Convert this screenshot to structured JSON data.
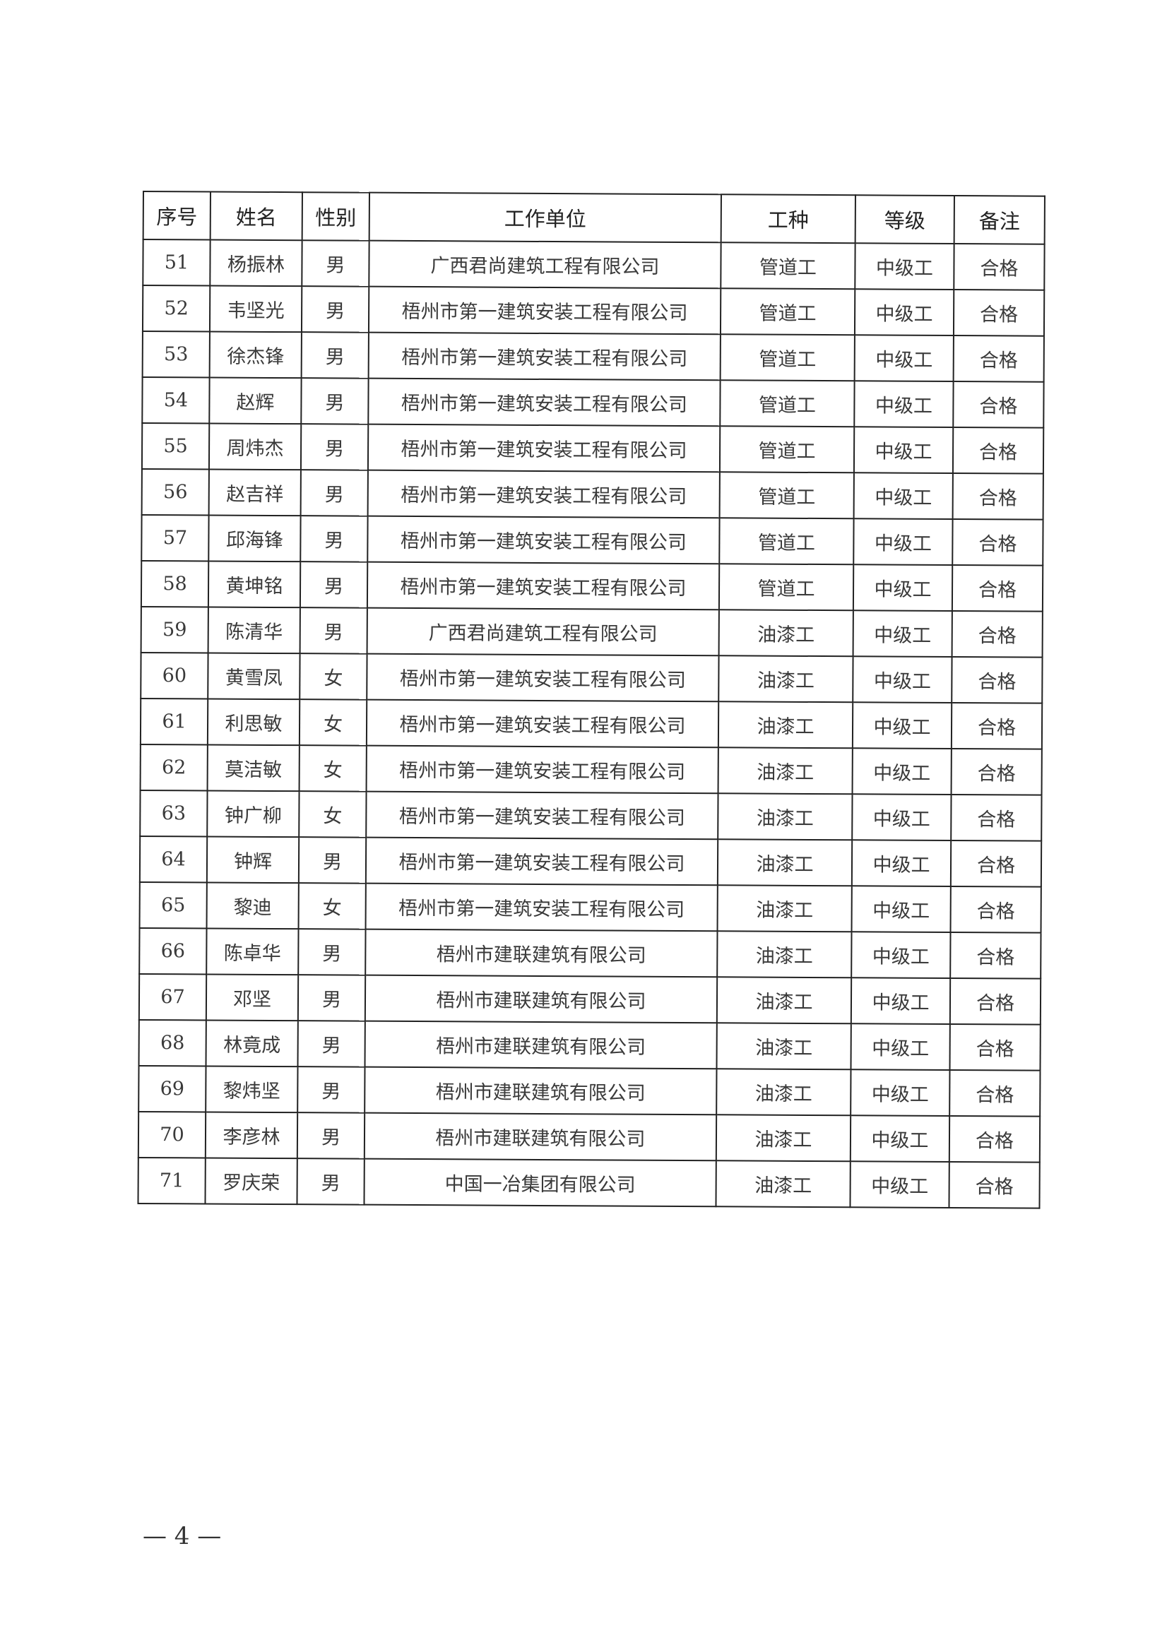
{
  "table": {
    "headers": [
      "序号",
      "姓名",
      "性别",
      "工作单位",
      "工种",
      "等级",
      "备注"
    ],
    "rows": [
      [
        "51",
        "杨振林",
        "男",
        "广西君尚建筑工程有限公司",
        "管道工",
        "中级工",
        "合格"
      ],
      [
        "52",
        "韦坚光",
        "男",
        "梧州市第一建筑安装工程有限公司",
        "管道工",
        "中级工",
        "合格"
      ],
      [
        "53",
        "徐杰锋",
        "男",
        "梧州市第一建筑安装工程有限公司",
        "管道工",
        "中级工",
        "合格"
      ],
      [
        "54",
        "赵辉",
        "男",
        "梧州市第一建筑安装工程有限公司",
        "管道工",
        "中级工",
        "合格"
      ],
      [
        "55",
        "周炜杰",
        "男",
        "梧州市第一建筑安装工程有限公司",
        "管道工",
        "中级工",
        "合格"
      ],
      [
        "56",
        "赵吉祥",
        "男",
        "梧州市第一建筑安装工程有限公司",
        "管道工",
        "中级工",
        "合格"
      ],
      [
        "57",
        "邱海锋",
        "男",
        "梧州市第一建筑安装工程有限公司",
        "管道工",
        "中级工",
        "合格"
      ],
      [
        "58",
        "黄坤铭",
        "男",
        "梧州市第一建筑安装工程有限公司",
        "管道工",
        "中级工",
        "合格"
      ],
      [
        "59",
        "陈清华",
        "男",
        "广西君尚建筑工程有限公司",
        "油漆工",
        "中级工",
        "合格"
      ],
      [
        "60",
        "黄雪凤",
        "女",
        "梧州市第一建筑安装工程有限公司",
        "油漆工",
        "中级工",
        "合格"
      ],
      [
        "61",
        "利思敏",
        "女",
        "梧州市第一建筑安装工程有限公司",
        "油漆工",
        "中级工",
        "合格"
      ],
      [
        "62",
        "莫洁敏",
        "女",
        "梧州市第一建筑安装工程有限公司",
        "油漆工",
        "中级工",
        "合格"
      ],
      [
        "63",
        "钟广柳",
        "女",
        "梧州市第一建筑安装工程有限公司",
        "油漆工",
        "中级工",
        "合格"
      ],
      [
        "64",
        "钟辉",
        "男",
        "梧州市第一建筑安装工程有限公司",
        "油漆工",
        "中级工",
        "合格"
      ],
      [
        "65",
        "黎迪",
        "女",
        "梧州市第一建筑安装工程有限公司",
        "油漆工",
        "中级工",
        "合格"
      ],
      [
        "66",
        "陈卓华",
        "男",
        "梧州市建联建筑有限公司",
        "油漆工",
        "中级工",
        "合格"
      ],
      [
        "67",
        "邓坚",
        "男",
        "梧州市建联建筑有限公司",
        "油漆工",
        "中级工",
        "合格"
      ],
      [
        "68",
        "林竟成",
        "男",
        "梧州市建联建筑有限公司",
        "油漆工",
        "中级工",
        "合格"
      ],
      [
        "69",
        "黎炜坚",
        "男",
        "梧州市建联建筑有限公司",
        "油漆工",
        "中级工",
        "合格"
      ],
      [
        "70",
        "李彦林",
        "男",
        "梧州市建联建筑有限公司",
        "油漆工",
        "中级工",
        "合格"
      ],
      [
        "71",
        "罗庆荣",
        "男",
        "中国一冶集团有限公司",
        "油漆工",
        "中级工",
        "合格"
      ]
    ]
  },
  "footer": {
    "page_number": "— 4 —"
  }
}
